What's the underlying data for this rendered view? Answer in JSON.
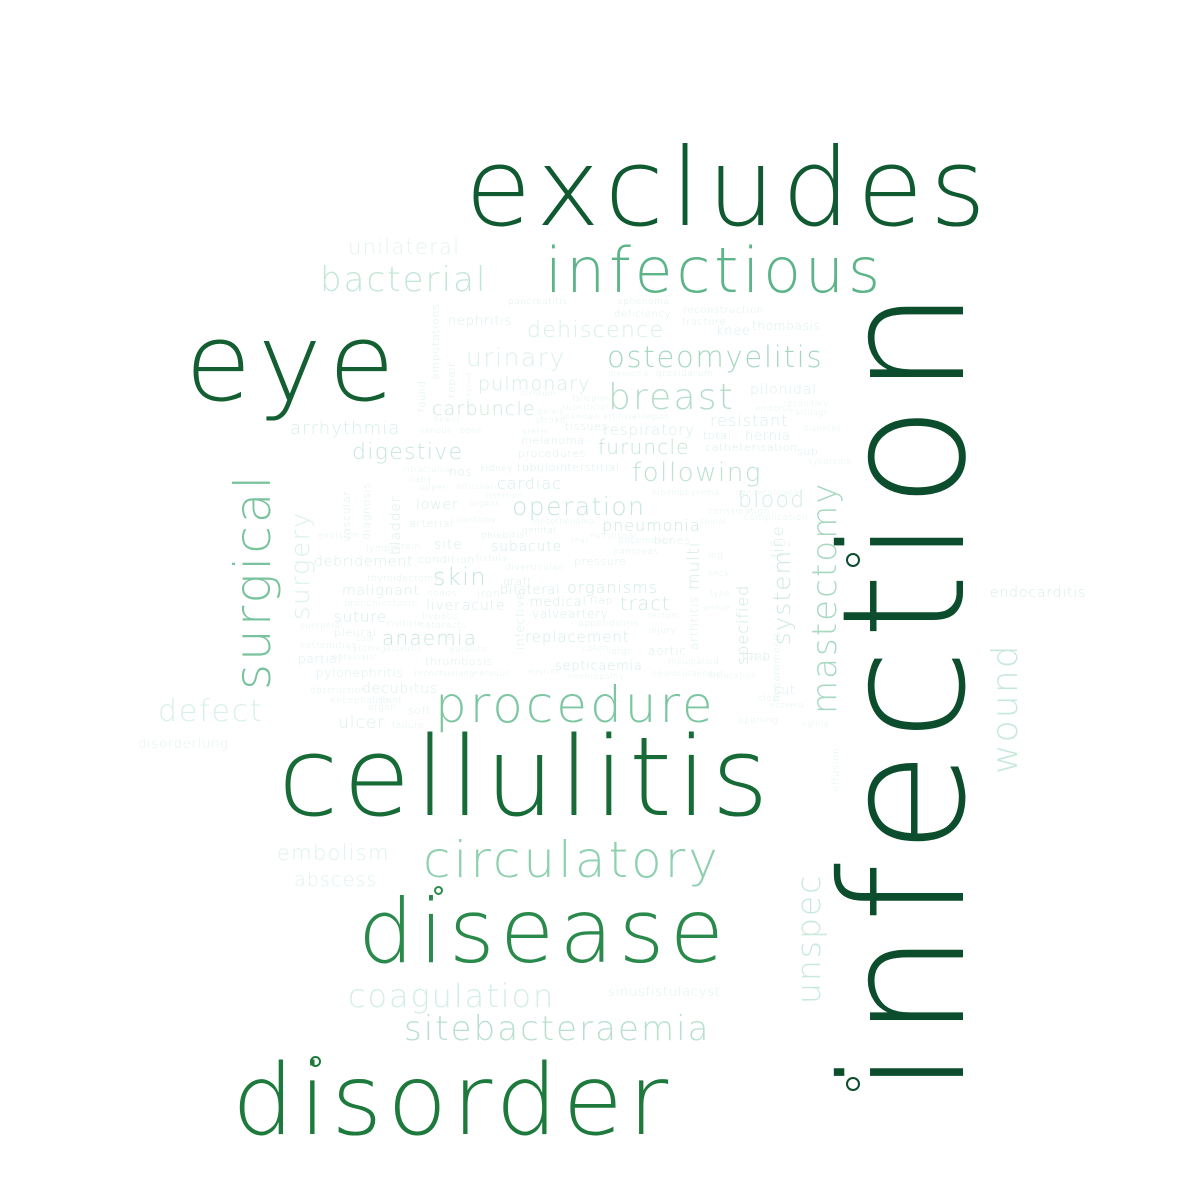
{
  "palette": {
    "c1": "#0b4d2c",
    "c2": "#166b36",
    "c3": "#2a8a4b",
    "c4": "#5cb489",
    "c5": "#8fd0b0",
    "c6": "#b9e3cf",
    "c7": "#d3eee2",
    "c8": "#e3f4ec"
  },
  "words": {
    "infection": "infection",
    "excludes": "excludes",
    "cellulitis": "cellulitis",
    "eye": "eye",
    "disorder": "disorder",
    "disease": "disease",
    "infectious": "infectious",
    "procedure": "procedure",
    "circulatory": "circulatory",
    "surgical": "surgical",
    "mastectomy": "mastectomy",
    "wound": "wound",
    "unspec": "unspec",
    "bacterial": "bacterial",
    "osteomyelitis": "osteomyelitis",
    "breast": "breast",
    "sitebacteraemia": "sitebacteraemia",
    "coagulation": "coagulation",
    "defect": "defect",
    "embolism": "embolism",
    "abscess": "abscess",
    "unilateral": "unilateral",
    "endocarditis": "endocarditis",
    "sinusfistulacyst": "sinusfistulacyst",
    "disorderlung": "disorderlung",
    "effusion": "effusion",
    "surgery": "surgery",
    "system": "system",
    "urinary": "urinary",
    "dehiscence": "dehiscence",
    "pulmonary": "pulmonary",
    "carbuncle": "carbuncle",
    "arrhythmia": "arrhythmia",
    "digestive": "digestive",
    "following": "following",
    "furuncle": "furuncle",
    "operation": "operation",
    "pneumonia": "pneumonia",
    "organisms": "organisms",
    "skin": "skin",
    "anaemia": "anaemia",
    "tract": "tract",
    "resistant": "resistant",
    "respiratory": "respiratory",
    "blood": "blood",
    "cardiac": "cardiac",
    "nephritis": "nephritis",
    "thombasis": "thombasis",
    "pilonidal": "pilonidal",
    "ulcer": "ulcer",
    "decubitus": "decubitus",
    "malignant": "malignant",
    "debridement": "debridement",
    "suture": "suture",
    "subacute": "subacute",
    "replacement": "replacement",
    "medical": "medical",
    "bilateral": "bilateral",
    "septicaemia": "septicaemia",
    "valveartery": "valveartery",
    "lower": "lower",
    "site": "site",
    "liver": "liver",
    "acute": "acute",
    "pleural": "pleural",
    "partial": "partial",
    "pylonephritis": "pylonephritis",
    "tubulointerstitial": "tubulointerstitial",
    "catheterisation": "catheterisation",
    "hernia": "hernia",
    "total": "total",
    "procedures": "procedures",
    "melanoma": "melanoma",
    "tissues": "tissues",
    "bladder": "bladder",
    "diagnosis": "diagnosis",
    "vascular": "vascular",
    "nos": "nos",
    "condition": "condition",
    "arterial": "arterial",
    "specified": "specified",
    "multi": "multi",
    "limb": "limb",
    "arthritis": "arthritis",
    "aortic": "aortic",
    "line": "line",
    "amputations": "amputations",
    "repair": "repair",
    "found": "found",
    "knee": "knee",
    "fracture": "fracture",
    "reconstruction": "reconstruction",
    "deficiency": "deficiency",
    "pancreatitis": "pancreatitis",
    "sub": "sub",
    "cut": "cut",
    "hyperemesis": "hyperemesis",
    "sub1": "",
    "thrombosis": "thrombosis",
    "soft": "soft",
    "graft": "graft",
    "iron": "iron",
    "flap": "flap",
    "kidney": "kidney",
    "genital": "genital",
    "pressure": "pressure",
    "bones": "bones",
    "phlebitis": "phlebitis",
    "infective": "infective",
    "excision": "excision",
    "lymph": "lymph",
    "brain": "brain",
    "complication": "complication",
    "constipation": "constipation",
    "pacemaker": "pacemaker",
    "pancreas": "pancreas",
    "diverticulae": "diverticulae",
    "appendicitis": "appendicitis",
    "thyroidectomy": "thyroidectomy",
    "bronchiectasis": "bronchiectasis",
    "extremities": "extremities",
    "obstruction": "obstruction",
    "encephalitis": "encephalitis",
    "cataracts": "cataracts",
    "hepatic": "hepatic",
    "nodes": "nodes",
    "fistula": "fistula",
    "stroke": "stroke",
    "colon": "colon",
    "large": "large",
    "joint": "joint",
    "failure": "failure",
    "organ": "organ",
    "injury": "injury",
    "viral": "viral",
    "opening": "opening",
    "cleft": "cleft",
    "secondary": "secondary",
    "cartilage": "cartilage",
    "diabetes": "diabetes",
    "syndrome": "syndrome",
    "embolus": "embolus",
    "eczema": "eczema",
    "unknown": "unknown",
    "artificial": "artificial",
    "region": "region",
    "superficial": "superficial",
    "pelvis": "pelvis",
    "fallopian": "fallopian",
    "gravidarum": "gravidarum",
    "myeloma": "myeloma",
    "sphenoma": "sphenoma",
    "thyroid": "thyroid",
    "scrotum": "scrotum",
    "upper": "upper",
    "organs": "organs",
    "articular": "articular",
    "insertion": "insertion",
    "colostomy": "colostomy",
    "vasculitis": "vasculitis",
    "veins": "veins",
    "stage": "stage",
    "lung": "lung",
    "mesothelioma": "mesothelioma",
    "nutritional": "nutritional",
    "tear": "tear",
    "puerperal": "puerperal",
    "penile": "penile",
    "neck": "neck",
    "infarction": "infarction",
    "paraesophageal": "paraesophageal",
    "rheumatoid": "rheumatoid",
    "neurocutaneous": "neurocutaneous",
    "dislocation": "dislocation",
    "dental": "dental",
    "urticaria": "urticaria",
    "disturbance": "disturbance",
    "spinal": "spinal",
    "septum": "septum",
    "rectum": "rectum",
    "mitral": "mitral",
    "bowel": "bowel",
    "venous": "venous",
    "bone": "bone",
    "parasitic": "parasitic",
    "duodenal": "duodenal",
    "bronchuelung": "bronchuelung",
    "nervous": "nervous",
    "multiple": "multiple",
    "metabolic": "metabolic",
    "cytomegalovirus": "cytomegalovirus",
    "metastatic": "metastatic",
    "coal": "coal",
    "injuries": "injuries",
    "nephropathy": "nephropathy",
    "intracranial": "intracranial",
    "cabg": "cabg",
    "ureter": "ureter",
    "hip": "hip",
    "emphysema": "emphysema",
    "gynaecological": "gynaecological",
    "leg": "leg",
    "body": "body",
    "type": "type",
    "ogling": "ogling",
    "feet": "feet"
  }
}
